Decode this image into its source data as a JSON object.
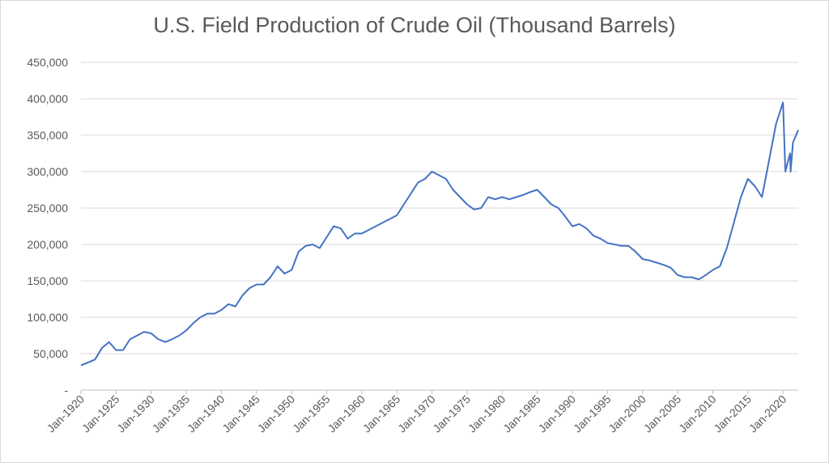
{
  "chart_data": {
    "type": "line",
    "title": "U.S. Field Production of Crude Oil (Thousand Barrels)",
    "xlabel": "",
    "ylabel": "",
    "x_tick_labels": [
      "Jan-1920",
      "Jan-1925",
      "Jan-1930",
      "Jan-1935",
      "Jan-1940",
      "Jan-1945",
      "Jan-1950",
      "Jan-1955",
      "Jan-1960",
      "Jan-1965",
      "Jan-1970",
      "Jan-1975",
      "Jan-1980",
      "Jan-1985",
      "Jan-1990",
      "Jan-1995",
      "Jan-2000",
      "Jan-2005",
      "Jan-2010",
      "Jan-2015",
      "Jan-2020"
    ],
    "y_tick_labels": [
      "-",
      "50,000",
      "100,000",
      "150,000",
      "200,000",
      "250,000",
      "300,000",
      "350,000",
      "400,000",
      "450,000"
    ],
    "ylim": [
      0,
      450000
    ],
    "xlim": [
      "1920-01",
      "2022-03"
    ],
    "grid": "horizontal",
    "legend": "none",
    "series": [
      {
        "color": "#4472c4",
        "x": [
          "1920-01",
          "1921-01",
          "1922-01",
          "1923-01",
          "1924-01",
          "1925-01",
          "1926-01",
          "1927-01",
          "1928-01",
          "1929-01",
          "1930-01",
          "1931-01",
          "1932-01",
          "1933-01",
          "1934-01",
          "1935-01",
          "1936-01",
          "1937-01",
          "1938-01",
          "1939-01",
          "1940-01",
          "1941-01",
          "1942-01",
          "1943-01",
          "1944-01",
          "1945-01",
          "1946-01",
          "1947-01",
          "1948-01",
          "1949-01",
          "1950-01",
          "1951-01",
          "1952-01",
          "1953-01",
          "1954-01",
          "1955-01",
          "1956-01",
          "1957-01",
          "1958-01",
          "1959-01",
          "1960-01",
          "1961-01",
          "1962-01",
          "1963-01",
          "1964-01",
          "1965-01",
          "1966-01",
          "1967-01",
          "1968-01",
          "1969-01",
          "1970-01",
          "1971-01",
          "1972-01",
          "1973-01",
          "1974-01",
          "1975-01",
          "1976-01",
          "1977-01",
          "1978-01",
          "1979-01",
          "1980-01",
          "1981-01",
          "1982-01",
          "1983-01",
          "1984-01",
          "1985-01",
          "1986-01",
          "1987-01",
          "1988-01",
          "1989-01",
          "1990-01",
          "1991-01",
          "1992-01",
          "1993-01",
          "1994-01",
          "1995-01",
          "1996-01",
          "1997-01",
          "1998-01",
          "1999-01",
          "2000-01",
          "2001-01",
          "2002-01",
          "2003-01",
          "2004-01",
          "2005-01",
          "2006-01",
          "2007-01",
          "2008-01",
          "2009-01",
          "2010-01",
          "2011-01",
          "2012-01",
          "2013-01",
          "2014-01",
          "2015-01",
          "2016-01",
          "2017-01",
          "2018-01",
          "2019-01",
          "2020-01",
          "2020-05",
          "2021-01",
          "2021-02",
          "2021-06",
          "2022-03"
        ],
        "y": [
          34000,
          38000,
          42000,
          58000,
          66000,
          55000,
          55000,
          70000,
          75000,
          80000,
          78000,
          70000,
          66000,
          70000,
          75000,
          82000,
          92000,
          100000,
          105000,
          105000,
          110000,
          118000,
          115000,
          130000,
          140000,
          145000,
          145000,
          155000,
          170000,
          160000,
          165000,
          190000,
          198000,
          200000,
          195000,
          210000,
          225000,
          222000,
          208000,
          215000,
          215000,
          220000,
          225000,
          230000,
          235000,
          240000,
          255000,
          270000,
          285000,
          290000,
          300000,
          295000,
          290000,
          275000,
          265000,
          255000,
          248000,
          250000,
          265000,
          262000,
          265000,
          262000,
          265000,
          268000,
          272000,
          275000,
          265000,
          255000,
          250000,
          238000,
          225000,
          228000,
          222000,
          212000,
          208000,
          202000,
          200000,
          198000,
          198000,
          190000,
          180000,
          178000,
          175000,
          172000,
          168000,
          158000,
          155000,
          155000,
          152000,
          158000,
          165000,
          170000,
          195000,
          230000,
          265000,
          290000,
          280000,
          265000,
          315000,
          365000,
          395000,
          300000,
          325000,
          300000,
          340000,
          357000
        ]
      }
    ]
  }
}
